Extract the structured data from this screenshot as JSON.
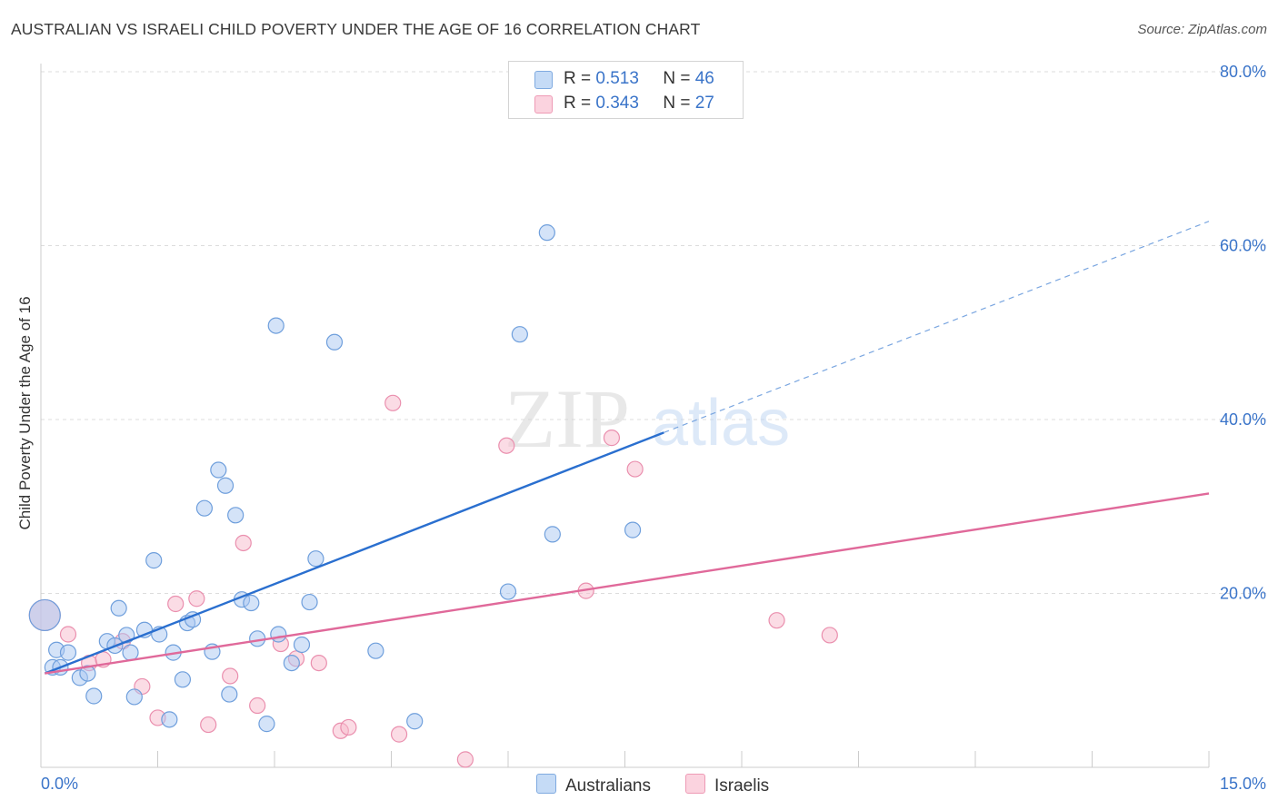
{
  "title": "AUSTRALIAN VS ISRAELI CHILD POVERTY UNDER THE AGE OF 16 CORRELATION CHART",
  "source": "Source: ZipAtlas.com",
  "watermark": {
    "zip": "ZIP",
    "atlas": "atlas"
  },
  "legend_top": {
    "rows": [
      {
        "r_label": "R =",
        "r_value": "0.513",
        "n_label": "N =",
        "n_value": "46",
        "color": "#a9c8f2"
      },
      {
        "r_label": "R =",
        "r_value": "0.343",
        "n_label": "N =",
        "n_value": "27",
        "color": "#f7b9cc"
      }
    ]
  },
  "legend_bottom": {
    "australians": "Australians",
    "israelis": "Israelis"
  },
  "chart_data": {
    "type": "scatter",
    "xlabel": "",
    "ylabel": "Child Poverty Under the Age of 16",
    "xlim": [
      0,
      15
    ],
    "ylim": [
      0,
      82
    ],
    "x_tick_labels": [
      "0.0%",
      "15.0%"
    ],
    "y_ticks": [
      20,
      40,
      60,
      80
    ],
    "y_tick_labels": [
      "20.0%",
      "40.0%",
      "60.0%",
      "80.0%"
    ],
    "grid": true,
    "colors": {
      "australians": "#a9c8f2",
      "australians_line": "#2a6fcf",
      "israelis": "#f7b9cc",
      "israelis_line": "#e0699a",
      "tick_text": "#3a74c9"
    },
    "series": [
      {
        "name": "Australians",
        "points": [
          [
            0.05,
            17.5
          ],
          [
            0.15,
            11.5
          ],
          [
            0.2,
            13.5
          ],
          [
            0.25,
            11.5
          ],
          [
            0.35,
            13.2
          ],
          [
            0.5,
            10.3
          ],
          [
            0.6,
            10.8
          ],
          [
            0.68,
            8.2
          ],
          [
            0.85,
            14.5
          ],
          [
            0.95,
            14.0
          ],
          [
            1.0,
            18.3
          ],
          [
            1.1,
            15.2
          ],
          [
            1.15,
            13.2
          ],
          [
            1.2,
            8.1
          ],
          [
            1.33,
            15.8
          ],
          [
            1.45,
            23.8
          ],
          [
            1.52,
            15.3
          ],
          [
            1.7,
            13.2
          ],
          [
            1.82,
            10.1
          ],
          [
            1.88,
            16.6
          ],
          [
            1.95,
            17.0
          ],
          [
            2.1,
            29.8
          ],
          [
            2.2,
            13.3
          ],
          [
            2.28,
            34.2
          ],
          [
            2.37,
            32.4
          ],
          [
            2.42,
            8.4
          ],
          [
            2.5,
            29.0
          ],
          [
            2.58,
            19.3
          ],
          [
            2.7,
            18.9
          ],
          [
            2.78,
            14.8
          ],
          [
            2.9,
            5.0
          ],
          [
            3.02,
            50.8
          ],
          [
            3.05,
            15.3
          ],
          [
            3.22,
            12.0
          ],
          [
            3.35,
            14.1
          ],
          [
            3.45,
            19.0
          ],
          [
            3.53,
            24.0
          ],
          [
            3.77,
            48.9
          ],
          [
            4.3,
            13.4
          ],
          [
            4.8,
            5.3
          ],
          [
            6.0,
            20.2
          ],
          [
            6.15,
            49.8
          ],
          [
            6.5,
            61.5
          ],
          [
            6.57,
            26.8
          ],
          [
            7.6,
            27.3
          ],
          [
            1.65,
            5.5
          ]
        ],
        "trend": {
          "x": [
            0.05,
            8.0
          ],
          "y": [
            10.8,
            38.5
          ],
          "dashed_to": [
            15.0,
            62.8
          ]
        }
      },
      {
        "name": "Israelis",
        "points": [
          [
            0.05,
            17.5
          ],
          [
            0.35,
            15.3
          ],
          [
            0.62,
            12.0
          ],
          [
            0.8,
            12.4
          ],
          [
            1.05,
            14.5
          ],
          [
            1.3,
            9.3
          ],
          [
            1.5,
            5.7
          ],
          [
            1.73,
            18.8
          ],
          [
            2.0,
            19.4
          ],
          [
            2.15,
            4.9
          ],
          [
            2.43,
            10.5
          ],
          [
            2.6,
            25.8
          ],
          [
            2.78,
            7.1
          ],
          [
            3.08,
            14.2
          ],
          [
            3.28,
            12.5
          ],
          [
            3.57,
            12.0
          ],
          [
            3.85,
            4.2
          ],
          [
            3.95,
            4.6
          ],
          [
            4.52,
            41.9
          ],
          [
            4.6,
            3.8
          ],
          [
            5.45,
            0.9
          ],
          [
            5.98,
            37.0
          ],
          [
            7.0,
            20.3
          ],
          [
            7.33,
            37.9
          ],
          [
            7.63,
            34.3
          ],
          [
            9.45,
            16.9
          ],
          [
            10.13,
            15.2
          ]
        ],
        "trend": {
          "x": [
            0.05,
            15.0
          ],
          "y": [
            10.8,
            31.5
          ]
        }
      }
    ]
  }
}
